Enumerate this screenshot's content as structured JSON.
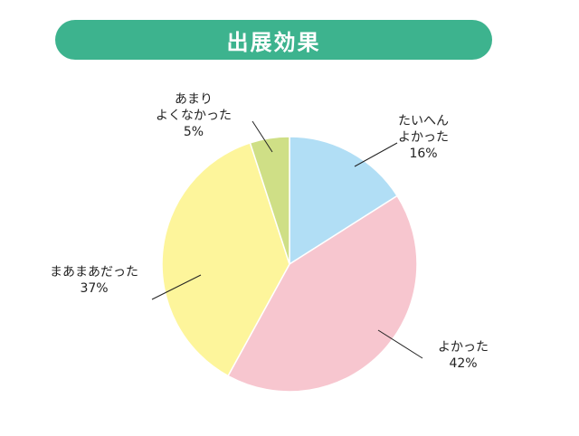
{
  "header": {
    "title": "出展効果",
    "bar_color": "#3db38e"
  },
  "chart_data": {
    "type": "pie",
    "start_angle_deg": 0,
    "direction": "clockwise",
    "slices": [
      {
        "label_lines": [
          "たいへん",
          "よかった"
        ],
        "pct_text": "16%",
        "value": 16,
        "color": "#b1def5"
      },
      {
        "label_lines": [
          "よかった"
        ],
        "pct_text": "42%",
        "value": 42,
        "color": "#f7c6cf"
      },
      {
        "label_lines": [
          "まあまあだった"
        ],
        "pct_text": "37%",
        "value": 37,
        "color": "#fdf59b"
      },
      {
        "label_lines": [
          "あまり",
          "よくなかった"
        ],
        "pct_text": "5%",
        "value": 5,
        "color": "#cfdf86"
      }
    ]
  }
}
